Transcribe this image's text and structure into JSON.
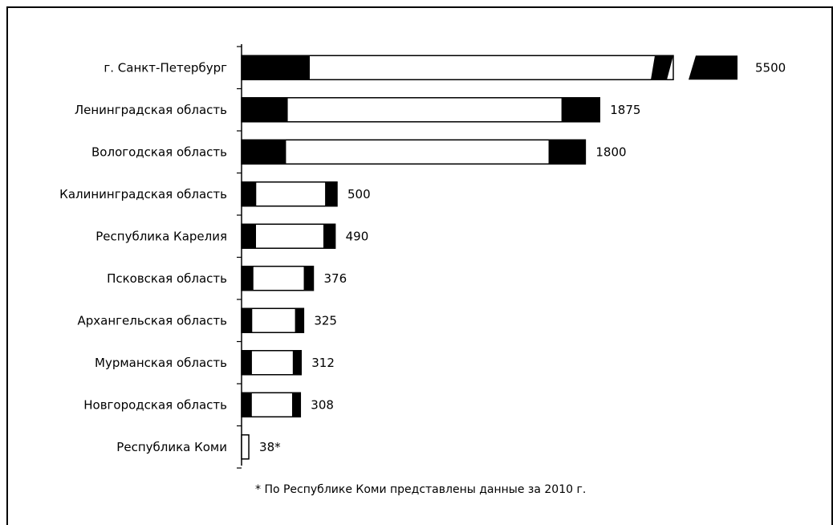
{
  "chart_data": {
    "type": "bar",
    "orientation": "horizontal",
    "title": "",
    "xlabel": "",
    "ylabel": "",
    "categories": [
      "г. Санкт-Петербург",
      "Ленинградская область",
      "Вологодская область",
      "Калининградская область",
      "Республика Карелия",
      "Псковская область",
      "Архангельская область",
      "Мурманская область",
      "Новгородская область",
      "Республика Коми"
    ],
    "values": [
      5500,
      1875,
      1800,
      500,
      490,
      376,
      325,
      312,
      308,
      38
    ],
    "value_labels": [
      "5500",
      "1875",
      "1800",
      "500",
      "490",
      "376",
      "325",
      "312",
      "308",
      "38*"
    ],
    "axis_break": {
      "category": "г. Санкт-Петербург"
    },
    "footnote": "* По Республике Коми представлены данные за 2010 г.",
    "colors": {
      "bar_fill": "#ffffff",
      "bar_edge": "#000000"
    }
  }
}
